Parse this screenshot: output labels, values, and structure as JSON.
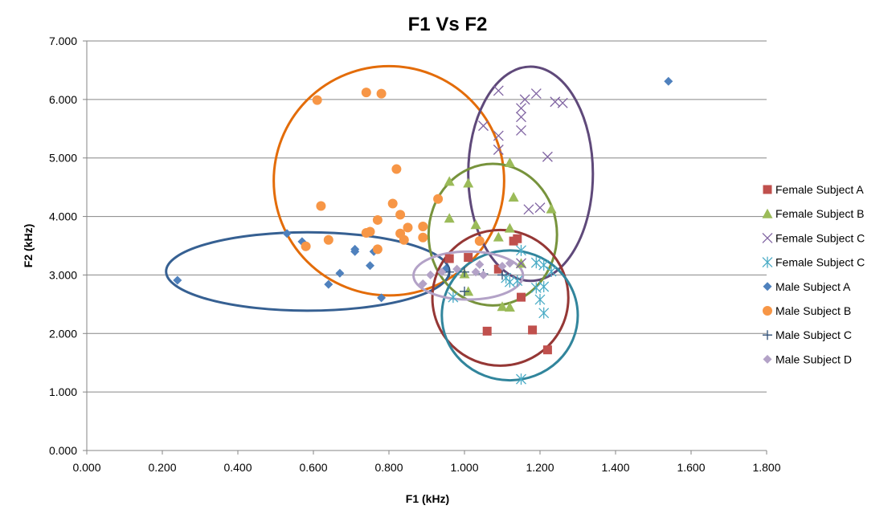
{
  "chart_data": {
    "type": "scatter",
    "title": "F1 Vs F2",
    "xlabel": "F1 (kHz)",
    "ylabel": "F2 (kHz)",
    "xlim": [
      0,
      1.8
    ],
    "ylim": [
      0,
      7
    ],
    "x_ticks": [
      "0.000",
      "0.200",
      "0.400",
      "0.600",
      "0.800",
      "1.000",
      "1.200",
      "1.400",
      "1.600",
      "1.800"
    ],
    "y_ticks": [
      "0.000",
      "1.000",
      "2.000",
      "3.000",
      "4.000",
      "5.000",
      "6.000",
      "7.000"
    ],
    "grid": "horizontal",
    "legend_position": "right",
    "series": [
      {
        "name": "Female Subject A",
        "marker": "square",
        "color": "#C0504D",
        "points": [
          [
            0.96,
            3.28
          ],
          [
            1.01,
            3.3
          ],
          [
            1.09,
            3.1
          ],
          [
            1.13,
            3.58
          ],
          [
            1.14,
            3.62
          ],
          [
            1.15,
            2.62
          ],
          [
            1.06,
            2.04
          ],
          [
            1.18,
            2.06
          ],
          [
            1.22,
            1.72
          ]
        ]
      },
      {
        "name": "Female Subject B",
        "marker": "triangle",
        "color": "#9BBB59",
        "points": [
          [
            0.96,
            4.6
          ],
          [
            1.01,
            4.57
          ],
          [
            0.96,
            3.97
          ],
          [
            1.03,
            3.86
          ],
          [
            1.12,
            4.92
          ],
          [
            1.13,
            4.33
          ],
          [
            1.23,
            4.13
          ],
          [
            1.12,
            3.8
          ],
          [
            1.09,
            3.65
          ],
          [
            1.15,
            3.2
          ],
          [
            1.0,
            3.02
          ],
          [
            1.01,
            2.72
          ],
          [
            1.1,
            2.46
          ],
          [
            1.12,
            2.45
          ]
        ]
      },
      {
        "name": "Female Subject C",
        "marker": "x",
        "color": "#8064A2",
        "points": [
          [
            1.09,
            6.15
          ],
          [
            1.19,
            6.1
          ],
          [
            1.16,
            6.0
          ],
          [
            1.24,
            5.96
          ],
          [
            1.26,
            5.94
          ],
          [
            1.15,
            5.85
          ],
          [
            1.15,
            5.7
          ],
          [
            1.05,
            5.55
          ],
          [
            1.15,
            5.47
          ],
          [
            1.09,
            5.38
          ],
          [
            1.09,
            5.14
          ],
          [
            1.22,
            5.02
          ],
          [
            1.17,
            4.12
          ],
          [
            1.2,
            4.15
          ],
          [
            1.15,
            3.2
          ]
        ]
      },
      {
        "name": "Female Subject C",
        "marker": "asterisk",
        "color": "#4BACC6",
        "points": [
          [
            1.15,
            3.42
          ],
          [
            1.19,
            3.21
          ],
          [
            1.21,
            3.17
          ],
          [
            1.23,
            3.06
          ],
          [
            1.11,
            2.95
          ],
          [
            1.12,
            2.88
          ],
          [
            1.14,
            2.9
          ],
          [
            1.19,
            2.78
          ],
          [
            1.21,
            2.8
          ],
          [
            1.2,
            2.58
          ],
          [
            1.21,
            2.35
          ],
          [
            0.97,
            2.62
          ],
          [
            1.15,
            1.22
          ]
        ]
      },
      {
        "name": "Male Subject A",
        "marker": "diamond",
        "color": "#4F81BD",
        "points": [
          [
            0.24,
            2.91
          ],
          [
            0.53,
            3.71
          ],
          [
            0.57,
            3.57
          ],
          [
            0.71,
            3.44
          ],
          [
            0.71,
            3.4
          ],
          [
            0.76,
            3.4
          ],
          [
            0.75,
            3.16
          ],
          [
            0.67,
            3.03
          ],
          [
            0.64,
            2.84
          ],
          [
            0.78,
            2.61
          ],
          [
            0.95,
            3.1
          ],
          [
            1.54,
            6.31
          ]
        ]
      },
      {
        "name": "Male Subject B",
        "marker": "circle",
        "color": "#F79646",
        "points": [
          [
            0.61,
            5.99
          ],
          [
            0.74,
            6.12
          ],
          [
            0.78,
            6.1
          ],
          [
            0.82,
            4.81
          ],
          [
            0.93,
            4.3
          ],
          [
            0.81,
            4.22
          ],
          [
            0.62,
            4.18
          ],
          [
            0.83,
            4.03
          ],
          [
            0.77,
            3.94
          ],
          [
            0.85,
            3.81
          ],
          [
            0.89,
            3.83
          ],
          [
            0.74,
            3.72
          ],
          [
            0.75,
            3.74
          ],
          [
            0.83,
            3.71
          ],
          [
            0.89,
            3.64
          ],
          [
            0.84,
            3.6
          ],
          [
            0.64,
            3.6
          ],
          [
            1.04,
            3.58
          ],
          [
            0.58,
            3.49
          ],
          [
            0.77,
            3.44
          ]
        ]
      },
      {
        "name": "Male Subject C",
        "marker": "plus",
        "color": "#2C4D75",
        "points": [
          [
            0.96,
            3.05
          ],
          [
            1.0,
            3.05
          ],
          [
            1.05,
            3.02
          ],
          [
            1.1,
            3.0
          ],
          [
            1.0,
            2.72
          ]
        ]
      },
      {
        "name": "Male Subject D",
        "marker": "diamond",
        "color": "#B3A2C7",
        "points": [
          [
            0.91,
            3.0
          ],
          [
            0.94,
            3.05
          ],
          [
            0.98,
            3.1
          ],
          [
            1.03,
            3.05
          ],
          [
            1.05,
            3.0
          ],
          [
            1.1,
            3.15
          ],
          [
            1.12,
            3.2
          ],
          [
            1.04,
            3.18
          ],
          [
            0.89,
            2.85
          ]
        ]
      }
    ],
    "ellipses": [
      {
        "series": "Male Subject B",
        "color": "#E36C09",
        "center": [
          0.8,
          4.61
        ],
        "rx": 0.305,
        "ry": 1.96
      },
      {
        "series": "Male Subject A",
        "color": "#366092",
        "center": [
          0.585,
          3.06
        ],
        "rx": 0.375,
        "ry": 0.67
      },
      {
        "series": "Female Subject C (x)",
        "color": "#5F497A",
        "center": [
          1.175,
          4.73
        ],
        "rx": 0.165,
        "ry": 1.83
      },
      {
        "series": "Female Subject B",
        "color": "#77933C",
        "center": [
          1.075,
          3.69
        ],
        "rx": 0.17,
        "ry": 1.21
      },
      {
        "series": "Female Subject A",
        "color": "#953735",
        "center": [
          1.095,
          2.61
        ],
        "rx": 0.18,
        "ry": 1.16
      },
      {
        "series": "Female Subject C (asterisk)",
        "color": "#31859C",
        "center": [
          1.12,
          2.31
        ],
        "rx": 0.18,
        "ry": 1.11
      },
      {
        "series": "Male Subject D",
        "color": "#B3A2C7",
        "center": [
          1.01,
          2.99
        ],
        "rx": 0.145,
        "ry": 0.41
      }
    ]
  }
}
